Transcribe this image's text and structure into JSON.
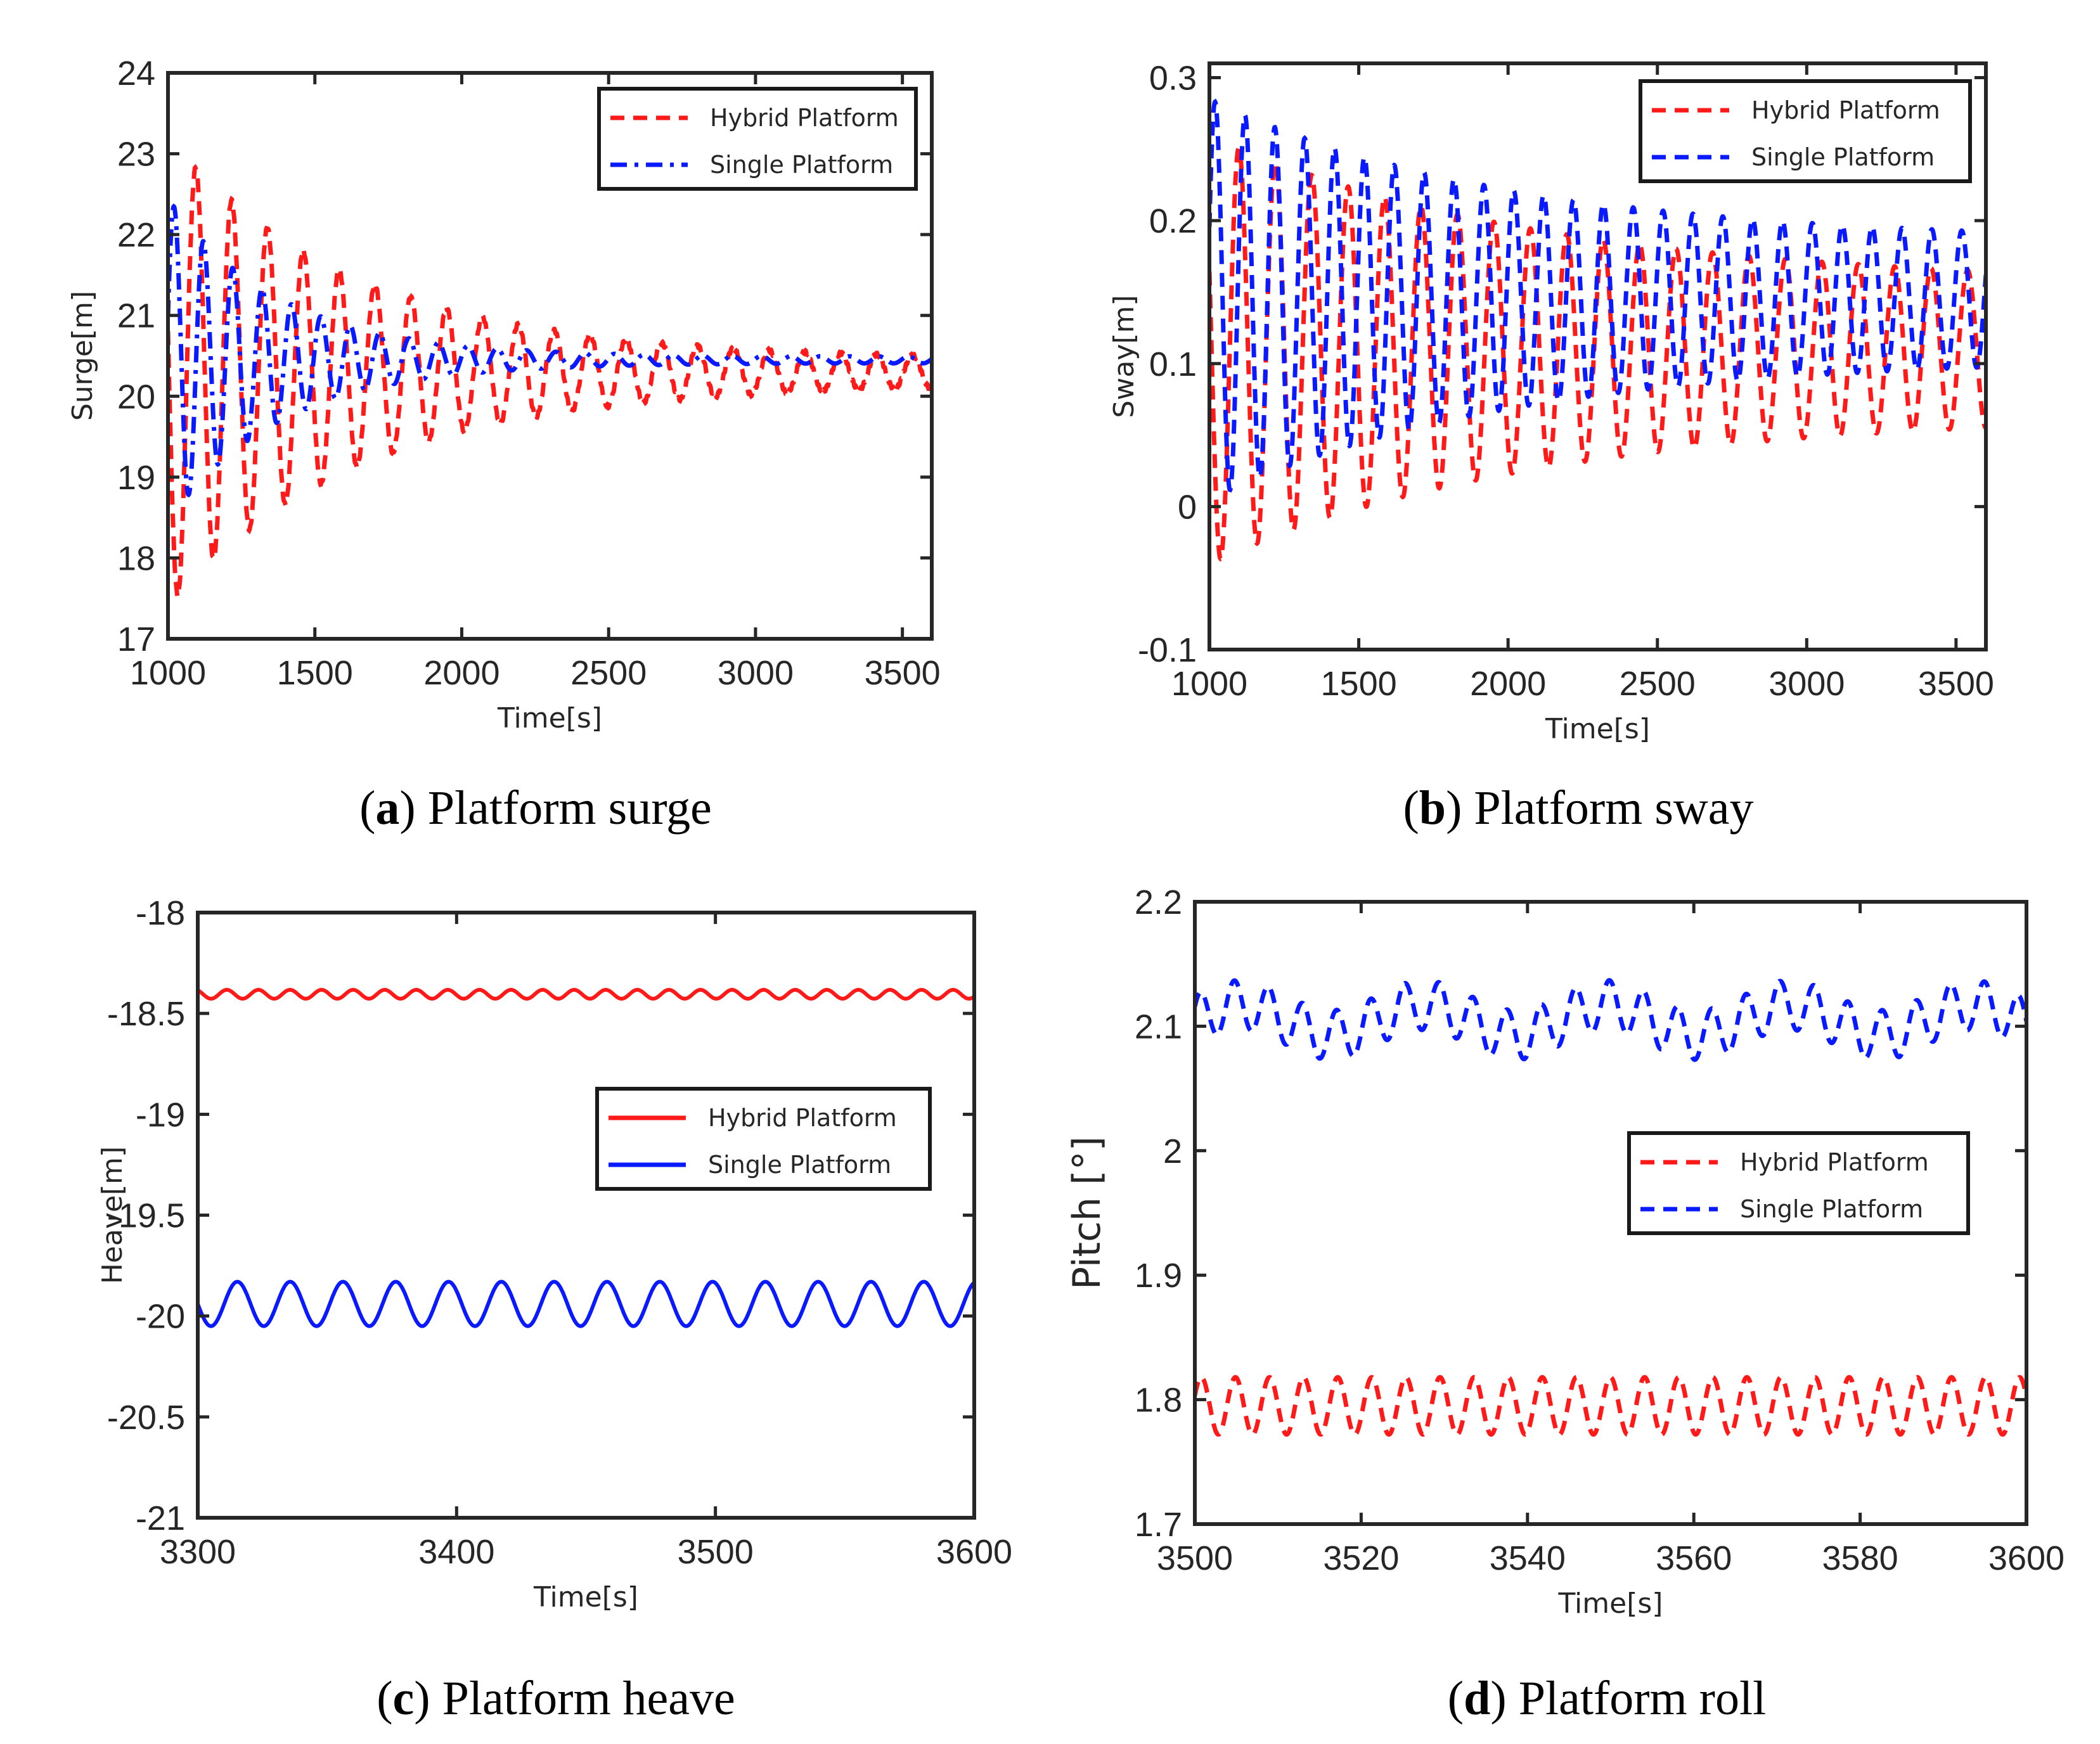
{
  "colors": {
    "hybrid": "#ff1a1a",
    "single": "#0a1aff",
    "axis": "#262626"
  },
  "chart_data": [
    {
      "type": "line",
      "caption_prefix": "(",
      "caption_letter": "a",
      "caption_text": ") Platform surge",
      "xlabel": "Time[s]",
      "ylabel": "Surge[m]",
      "xlim": [
        1000,
        3600
      ],
      "ylim": [
        17,
        24
      ],
      "xticks": [
        1000,
        1500,
        2000,
        2500,
        3000,
        3500
      ],
      "yticks": [
        17,
        18,
        19,
        20,
        21,
        22,
        23,
        24
      ],
      "legend": {
        "position": "top-right",
        "entries": [
          "Hybrid Platform",
          "Single Platform"
        ]
      },
      "series": [
        {
          "name": "Hybrid Platform",
          "style": "dashed",
          "model": {
            "mean": 20.3,
            "amp0": 2.9,
            "ampEnd": 0.15,
            "decay": 650,
            "period": 122,
            "phase": 1.4,
            "xstart": 1000
          },
          "range": [
            17.3,
            23.2
          ]
        },
        {
          "name": "Single Platform",
          "style": "dashdot",
          "model": {
            "mean": 20.45,
            "amp0": 2.0,
            "ampEnd": 0.04,
            "decay": 380,
            "period": 100,
            "phase": -1.3,
            "xstart": 1000
          },
          "range": [
            18.3,
            22.4
          ]
        }
      ]
    },
    {
      "type": "line",
      "caption_prefix": "(",
      "caption_letter": "b",
      "caption_text": ") Platform sway",
      "xlabel": "Time[s]",
      "ylabel": "Sway[m]",
      "xlim": [
        1000,
        3600
      ],
      "ylim": [
        -0.1,
        0.31
      ],
      "xticks": [
        1000,
        1500,
        2000,
        2500,
        3000,
        3500
      ],
      "yticks": [
        -0.1,
        0,
        0.1,
        0.2,
        0.3
      ],
      "legend": {
        "position": "top-right",
        "entries": [
          "Hybrid Platform",
          "Single Platform"
        ]
      },
      "series": [
        {
          "name": "Hybrid Platform",
          "style": "dashed",
          "model": {
            "mean": 0.11,
            "amp0": 0.15,
            "ampEnd": 0.045,
            "decay": 1100,
            "period": 122,
            "phase": 1.2,
            "xstart": 1000
          },
          "range": [
            -0.035,
            0.27
          ]
        },
        {
          "name": "Single Platform",
          "style": "dashed",
          "model": {
            "mean": 0.145,
            "amp0": 0.14,
            "ampEnd": 0.04,
            "decay": 1000,
            "period": 100,
            "phase": -1.2,
            "xstart": 1000
          },
          "range": [
            0.02,
            0.31
          ]
        }
      ]
    },
    {
      "type": "line",
      "caption_prefix": "(",
      "caption_letter": "c",
      "caption_text": ") Platform heave",
      "xlabel": "Time[s]",
      "ylabel": "Heave[m]",
      "xlim": [
        3300,
        3600
      ],
      "ylim": [
        -21,
        -18
      ],
      "xticks": [
        3300,
        3400,
        3500,
        3600
      ],
      "yticks": [
        -21,
        -20.5,
        -20,
        -19.5,
        -19,
        -18.5,
        -18
      ],
      "legend": {
        "position": "center-right",
        "entries": [
          "Hybrid Platform",
          "Single Platform"
        ]
      },
      "series": [
        {
          "name": "Hybrid Platform",
          "style": "solid",
          "model": {
            "mean": -18.405,
            "amp0": 0.022,
            "ampEnd": 0.022,
            "decay": 1000000000.0,
            "period": 12.2,
            "phase": 0.5,
            "xstart": 3300
          },
          "range": [
            -18.43,
            -18.38
          ]
        },
        {
          "name": "Single Platform",
          "style": "solid",
          "model": {
            "mean": -19.94,
            "amp0": 0.11,
            "ampEnd": 0.11,
            "decay": 1000000000.0,
            "period": 20.4,
            "phase": 1.57,
            "xstart": 3300
          },
          "range": [
            -20.05,
            -19.83
          ]
        }
      ]
    },
    {
      "type": "line",
      "caption_prefix": "(",
      "caption_letter": "d",
      "caption_text": ") Platform roll",
      "xlabel": "Time[s]",
      "ylabel": "Pitch [°]",
      "xlim": [
        3500,
        3600
      ],
      "ylim": [
        1.7,
        2.2
      ],
      "xticks": [
        3500,
        3520,
        3540,
        3560,
        3580,
        3600
      ],
      "yticks": [
        1.7,
        1.8,
        1.9,
        2,
        2.1,
        2.2
      ],
      "legend": {
        "position": "center-right",
        "entries": [
          "Hybrid Platform",
          "Single Platform"
        ]
      },
      "series": [
        {
          "name": "Hybrid Platform",
          "style": "dashed",
          "model": {
            "mean": 1.795,
            "amp0": 0.023,
            "ampEnd": 0.023,
            "decay": 1000000000.0,
            "period": 4.1,
            "phase": -1.2,
            "xstart": 3500
          },
          "range": [
            1.77,
            1.82
          ]
        },
        {
          "name": "Single Platform",
          "style": "dashed",
          "model": {
            "mean": 2.105,
            "amp0": 0.02,
            "ampEnd": 0.02,
            "decay": 1000000000.0,
            "period": 4.1,
            "phase": -1.0,
            "xstart": 3500,
            "beat": 0.012,
            "beatPeriod": 22
          },
          "range": [
            2.07,
            2.14
          ]
        }
      ]
    }
  ]
}
